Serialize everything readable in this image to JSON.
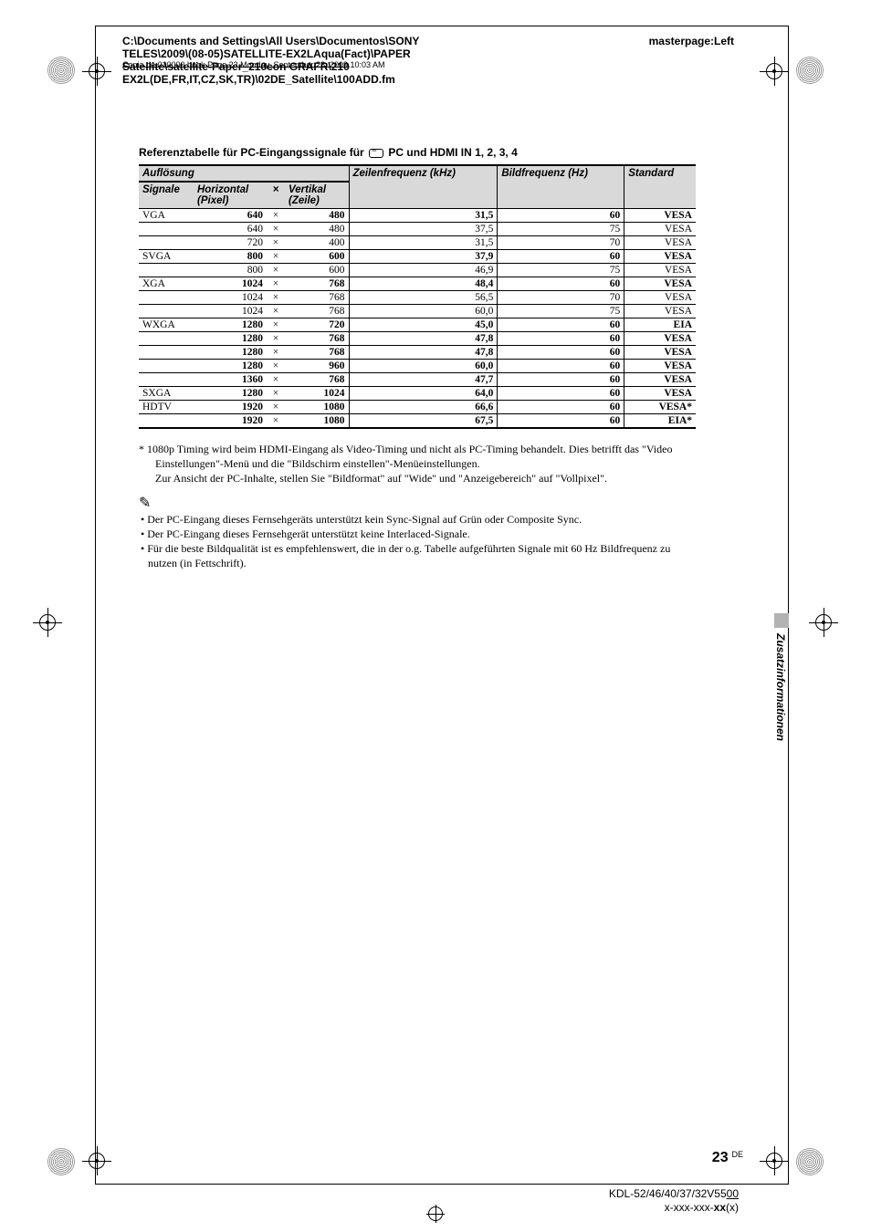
{
  "header": {
    "masterpage": "masterpage:Left",
    "path1": "C:\\Documents and Settings\\All Users\\Documentos\\SONY",
    "path2": "TELES\\2009\\(08-05)SATELLITE-EX2LAqua(Fact)\\PAPER",
    "path3_strike": "Satellite\\satellite-Paper_210con GRAFR\\210",
    "path3_tail": "Copia de 010000.book Page 23 Monday, September 28, 2009 10:03 AM",
    "path4": "EX2L(DE,FR,IT,CZ,SK,TR)\\02DE_Satellite\\100ADD.fm"
  },
  "section_title_a": "Referenztabelle für PC-Eingangssignale für ",
  "section_title_b": " PC und HDMI IN 1, 2, 3, 4",
  "table": {
    "head_res": "Auflösung",
    "head_sig": "Signale",
    "head_h": "Horizontal (Pixel)",
    "head_x": "×",
    "head_v": "Vertikal (Zeile)",
    "head_lf": "Zeilenfrequenz (kHz)",
    "head_bf": "Bildfrequenz (Hz)",
    "head_std": "Standard",
    "rows": [
      {
        "sig": "VGA",
        "h": "640",
        "v": "480",
        "lf": "31,5",
        "bf": "60",
        "std": "VESA",
        "bold": true
      },
      {
        "sig": "",
        "h": "640",
        "v": "480",
        "lf": "37,5",
        "bf": "75",
        "std": "VESA",
        "bold": false
      },
      {
        "sig": "",
        "h": "720",
        "v": "400",
        "lf": "31,5",
        "bf": "70",
        "std": "VESA",
        "bold": false
      },
      {
        "sig": "SVGA",
        "h": "800",
        "v": "600",
        "lf": "37,9",
        "bf": "60",
        "std": "VESA",
        "bold": true
      },
      {
        "sig": "",
        "h": "800",
        "v": "600",
        "lf": "46,9",
        "bf": "75",
        "std": "VESA",
        "bold": false
      },
      {
        "sig": "XGA",
        "h": "1024",
        "v": "768",
        "lf": "48,4",
        "bf": "60",
        "std": "VESA",
        "bold": true
      },
      {
        "sig": "",
        "h": "1024",
        "v": "768",
        "lf": "56,5",
        "bf": "70",
        "std": "VESA",
        "bold": false
      },
      {
        "sig": "",
        "h": "1024",
        "v": "768",
        "lf": "60,0",
        "bf": "75",
        "std": "VESA",
        "bold": false
      },
      {
        "sig": "WXGA",
        "h": "1280",
        "v": "720",
        "lf": "45,0",
        "bf": "60",
        "std": "EIA",
        "bold": true
      },
      {
        "sig": "",
        "h": "1280",
        "v": "768",
        "lf": "47,8",
        "bf": "60",
        "std": "VESA",
        "bold": true
      },
      {
        "sig": "",
        "h": "1280",
        "v": "768",
        "lf": "47,8",
        "bf": "60",
        "std": "VESA",
        "bold": true
      },
      {
        "sig": "",
        "h": "1280",
        "v": "960",
        "lf": "60,0",
        "bf": "60",
        "std": "VESA",
        "bold": true
      },
      {
        "sig": "",
        "h": "1360",
        "v": "768",
        "lf": "47,7",
        "bf": "60",
        "std": "VESA",
        "bold": true
      },
      {
        "sig": "SXGA",
        "h": "1280",
        "v": "1024",
        "lf": "64,0",
        "bf": "60",
        "std": "VESA",
        "bold": true
      },
      {
        "sig": "HDTV",
        "h": "1920",
        "v": "1080",
        "lf": "66,6",
        "bf": "60",
        "std": "VESA*",
        "bold": true
      },
      {
        "sig": "",
        "h": "1920",
        "v": "1080",
        "lf": "67,5",
        "bf": "60",
        "std": "EIA*",
        "bold": true
      }
    ]
  },
  "footnote_star": "*   1080p Timing wird beim HDMI-Eingang als Video-Timing und nicht als PC-Timing behandelt. Dies betrifft das \"Video Einstellungen\"-Menü und die \"Bildschirm einstellen\"-Menüeinstellungen.",
  "footnote_line2": "Zur Ansicht der PC-Inhalte, stellen Sie \"Bildformat\" auf \"Wide\" und \"Anzeigebereich\" auf \"Vollpixel\".",
  "note_symbol": "✎",
  "bullets": {
    "b1": "• Der PC-Eingang dieses Fernsehgeräts unterstützt kein Sync-Signal auf Grün oder Composite Sync.",
    "b2": "• Der PC-Eingang dieses Fernsehgerät unterstützt keine Interlaced-Signale.",
    "b3": "• Für die beste Bildqualität ist es empfehlenswert, die in der o.g. Tabelle aufgeführten Signale mit 60 Hz Bildfrequenz zu nutzen (in Fettschrift)."
  },
  "sidetab": "Zusatzinformationen",
  "page_number": "23",
  "page_lang": "DE",
  "footer": {
    "model": "KDL-52/46/40/37/32V5500",
    "code_a": "x-xxx-xxx-",
    "code_b": "xx",
    "code_c": "(x)"
  }
}
